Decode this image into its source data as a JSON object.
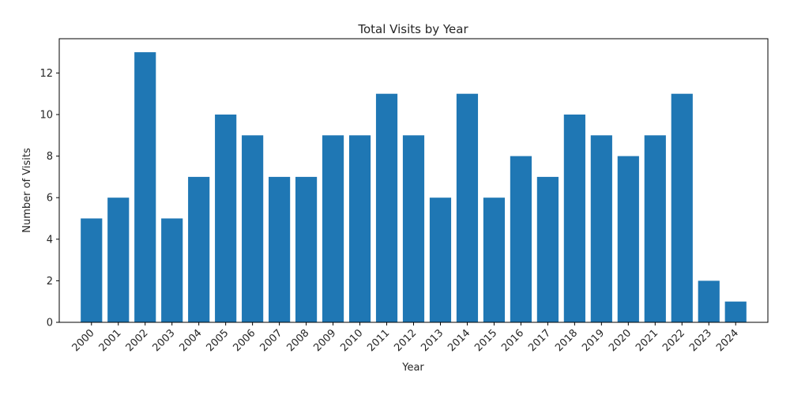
{
  "chart_data": {
    "type": "bar",
    "title": "Total Visits by Year",
    "xlabel": "Year",
    "ylabel": "Number of Visits",
    "categories": [
      "2000",
      "2001",
      "2002",
      "2003",
      "2004",
      "2005",
      "2006",
      "2007",
      "2008",
      "2009",
      "2010",
      "2011",
      "2012",
      "2013",
      "2014",
      "2015",
      "2016",
      "2017",
      "2018",
      "2019",
      "2020",
      "2021",
      "2022",
      "2023",
      "2024"
    ],
    "values": [
      5,
      6,
      13,
      5,
      7,
      10,
      9,
      7,
      7,
      9,
      9,
      11,
      9,
      6,
      11,
      6,
      8,
      7,
      10,
      9,
      8,
      9,
      11,
      2,
      1
    ],
    "ylim": [
      0,
      13.65
    ],
    "yticks": [
      0,
      2,
      4,
      6,
      8,
      10,
      12
    ],
    "bar_color": "#1f77b4",
    "grid": false,
    "legend": "none"
  }
}
